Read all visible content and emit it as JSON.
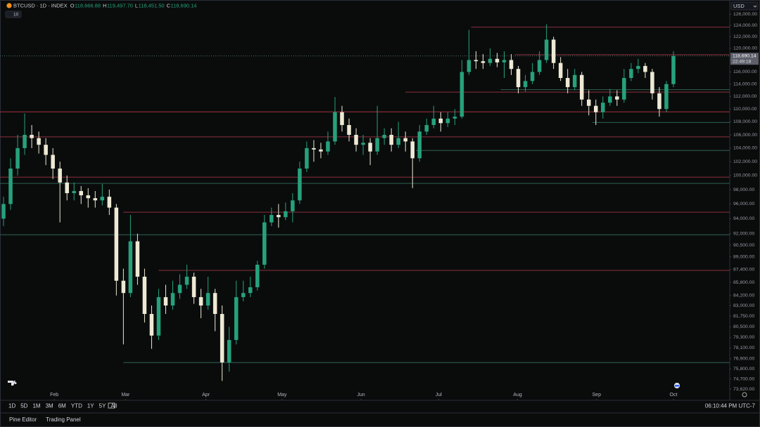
{
  "ui": {
    "symbol": "BTCUSD · 1D · INDEX",
    "ohlc": [
      {
        "key": "O",
        "value": "118,666.88"
      },
      {
        "key": "H",
        "value": "119,497.70"
      },
      {
        "key": "L",
        "value": "118,451.50"
      },
      {
        "key": "C",
        "value": "118,690.14"
      }
    ],
    "indicators": "10",
    "currency": "USD",
    "timeframes": [
      "1D",
      "5D",
      "1M",
      "3M",
      "6M",
      "YTD",
      "1Y",
      "5Y",
      "All"
    ],
    "clock": "06:10:44 PM UTC-7",
    "tabs": [
      "Pine Editor",
      "Trading Panel"
    ]
  },
  "chart_data": {
    "type": "candlestick",
    "ylog": true,
    "grid": false,
    "up_color": "#26a17b",
    "down_color": "#ede9d4",
    "xlim": [
      -0.5,
      95.5
    ],
    "ylim": [
      72600,
      126800
    ],
    "xticks": [
      {
        "value": 7.2,
        "label": "Feb"
      },
      {
        "value": 17.3,
        "label": "Mar"
      },
      {
        "value": 28.7,
        "label": "Apr"
      },
      {
        "value": 39.5,
        "label": "May"
      },
      {
        "value": 50.7,
        "label": "Jun"
      },
      {
        "value": 61.7,
        "label": "Jul"
      },
      {
        "value": 72.9,
        "label": "Aug"
      },
      {
        "value": 84.1,
        "label": "Sep"
      },
      {
        "value": 95,
        "label": "Oct"
      }
    ],
    "yticks": [
      {
        "value": 126000,
        "label": "126,000.00"
      },
      {
        "value": 124000,
        "label": "124,000.00"
      },
      {
        "value": 122000,
        "label": "122,000.00"
      },
      {
        "value": 120000,
        "label": "120,000.00"
      },
      {
        "value": 118000,
        "label": "118,000.00"
      },
      {
        "value": 116000,
        "label": "116,000.00"
      },
      {
        "value": 114000,
        "label": "114,000.00"
      },
      {
        "value": 112000,
        "label": "112,000.00"
      },
      {
        "value": 110000,
        "label": "110,000.00"
      },
      {
        "value": 108000,
        "label": "108,000.00"
      },
      {
        "value": 106000,
        "label": "106,000.00"
      },
      {
        "value": 104000,
        "label": "104,000.00"
      },
      {
        "value": 102000,
        "label": "102,000.00"
      },
      {
        "value": 100000,
        "label": "100,000.00"
      },
      {
        "value": 98000,
        "label": "98,000.00"
      },
      {
        "value": 96000,
        "label": "96,000.00"
      },
      {
        "value": 94000,
        "label": "94,000.00"
      },
      {
        "value": 92000,
        "label": "92,000.00"
      },
      {
        "value": 90500,
        "label": "90,500.00"
      },
      {
        "value": 89000,
        "label": "89,000.00"
      },
      {
        "value": 87400,
        "label": "87,400.00"
      },
      {
        "value": 85800,
        "label": "85,800.00"
      },
      {
        "value": 84200,
        "label": "84,200.00"
      },
      {
        "value": 83000,
        "label": "83,000.00"
      },
      {
        "value": 81750,
        "label": "81,750.00"
      },
      {
        "value": 80500,
        "label": "80,500.00"
      },
      {
        "value": 79300,
        "label": "79,300.00"
      },
      {
        "value": 78100,
        "label": "78,100.00"
      },
      {
        "value": 76900,
        "label": "76,900.00"
      },
      {
        "value": 75800,
        "label": "75,800.00"
      },
      {
        "value": 74700,
        "label": "74,700.00"
      },
      {
        "value": 73620,
        "label": "73,620.00"
      }
    ],
    "open": [
      94000,
      96000,
      101000,
      104000,
      106000,
      105500,
      104500,
      103000,
      101000,
      99000,
      97500,
      97800,
      97200,
      96800,
      96500,
      97000,
      95500,
      86000,
      84500,
      91000,
      86500,
      82000,
      79500,
      84000,
      83000,
      84500,
      85500,
      86500,
      84000,
      83000,
      84500,
      82000,
      76500,
      79000,
      84000,
      84500,
      85200,
      88000,
      93500,
      94500,
      94200,
      95000,
      96500,
      101000,
      104000,
      103800,
      103500,
      105000,
      109500,
      107500,
      106000,
      104500,
      104800,
      103500,
      105500,
      106000,
      104500,
      105500,
      105000,
      102500,
      106500,
      107500,
      108500,
      107800,
      108500,
      108800,
      116000,
      118000,
      117800,
      117500,
      118200,
      117600,
      118000,
      116500,
      113500,
      114500,
      116000,
      118000,
      121500,
      117500,
      115000,
      113500,
      115500,
      111500,
      110500,
      109500,
      111000,
      112000,
      111500,
      115000,
      116500,
      117000,
      116000,
      112500,
      110000,
      114000
    ],
    "high": [
      97000,
      102500,
      106000,
      109300,
      107500,
      106500,
      105500,
      104000,
      102000,
      100000,
      99000,
      98500,
      98200,
      97800,
      98800,
      98000,
      96000,
      87500,
      94500,
      92000,
      87500,
      83000,
      85000,
      85500,
      86000,
      86800,
      88000,
      87000,
      85000,
      86500,
      85000,
      83000,
      80500,
      86000,
      86000,
      86500,
      88500,
      94500,
      95500,
      96000,
      96200,
      97500,
      102000,
      105000,
      105200,
      104800,
      106500,
      111900,
      110500,
      108500,
      107000,
      106000,
      105500,
      110500,
      107000,
      107000,
      108000,
      106500,
      105500,
      107500,
      108500,
      110500,
      109500,
      109500,
      110000,
      118000,
      123200,
      119500,
      119000,
      120000,
      119200,
      119500,
      119000,
      117000,
      115500,
      117500,
      119500,
      124200,
      122000,
      118500,
      116500,
      116500,
      116000,
      113000,
      111500,
      112000,
      113200,
      113000,
      116500,
      117500,
      118200,
      117500,
      116500,
      113500,
      114500,
      119500
    ],
    "low": [
      93000,
      95200,
      100000,
      103000,
      104000,
      103200,
      101500,
      99500,
      93500,
      96500,
      96500,
      96000,
      95500,
      95500,
      95800,
      94500,
      84200,
      78500,
      84000,
      85500,
      81000,
      78000,
      79000,
      82000,
      82500,
      83800,
      85000,
      83200,
      81500,
      82500,
      80000,
      74500,
      75500,
      78500,
      83500,
      84000,
      84800,
      87500,
      93000,
      92800,
      93800,
      93500,
      96000,
      100500,
      102000,
      102500,
      103000,
      104500,
      106500,
      105000,
      103500,
      103000,
      101500,
      103000,
      104500,
      103500,
      104000,
      103500,
      98200,
      102000,
      106000,
      107000,
      106500,
      107200,
      107500,
      108500,
      115500,
      116500,
      116500,
      117000,
      116800,
      115000,
      115500,
      112500,
      112800,
      114000,
      115500,
      117500,
      116500,
      114500,
      112500,
      113000,
      110500,
      109000,
      107500,
      108500,
      110500,
      110500,
      111000,
      114500,
      115800,
      115000,
      111500,
      108800,
      109500,
      113500
    ],
    "close": [
      96000,
      101000,
      104000,
      106000,
      105500,
      104500,
      103000,
      101000,
      99000,
      97500,
      97800,
      97200,
      96800,
      96500,
      97000,
      95500,
      86000,
      84500,
      91000,
      86500,
      82000,
      79500,
      84000,
      83000,
      84500,
      85500,
      86500,
      84000,
      83000,
      84500,
      82000,
      76500,
      79000,
      84000,
      84500,
      85200,
      88000,
      93500,
      94500,
      94200,
      95000,
      96500,
      101000,
      104000,
      103800,
      103500,
      105000,
      109500,
      107500,
      106000,
      104500,
      104800,
      103500,
      105500,
      106000,
      104500,
      105500,
      105000,
      102500,
      106500,
      107500,
      108500,
      107800,
      108500,
      108800,
      116000,
      118000,
      117800,
      117500,
      118200,
      117600,
      118000,
      116500,
      113500,
      114500,
      116000,
      118000,
      121500,
      117500,
      115000,
      113500,
      115500,
      111500,
      110500,
      109500,
      111000,
      112000,
      111500,
      115000,
      116500,
      117000,
      116000,
      112500,
      110000,
      114000,
      118690
    ],
    "levels": [
      {
        "value": 123700,
        "from": 66.3,
        "color": "#8a2f3c"
      },
      {
        "value": 118900,
        "from": 72.5,
        "color": "#8a2f3c"
      },
      {
        "value": 113100,
        "from": 70.5,
        "color": "#2f6152"
      },
      {
        "value": 112700,
        "from": 57,
        "color": "#8a2f3c"
      },
      {
        "value": 109550,
        "from": -0.5,
        "color": "#a3303f"
      },
      {
        "value": 107900,
        "from": 83.5,
        "color": "#2f6152"
      },
      {
        "value": 105700,
        "from": -0.5,
        "color": "#8a2f3c"
      },
      {
        "value": 103650,
        "from": 58.5,
        "color": "#2f6152"
      },
      {
        "value": 99760,
        "from": -0.5,
        "color": "#8a2f3c"
      },
      {
        "value": 98870,
        "from": -0.5,
        "color": "#2f6152"
      },
      {
        "value": 94880,
        "from": 17,
        "color": "#8a2f3c"
      },
      {
        "value": 91860,
        "from": -0.5,
        "color": "#2f6152"
      },
      {
        "value": 87280,
        "from": 22,
        "color": "#8a2f3c"
      },
      {
        "value": 76480,
        "from": 17,
        "color": "#2f6152"
      }
    ],
    "last_label": "118,690.14",
    "countdown": "22:49:18"
  }
}
